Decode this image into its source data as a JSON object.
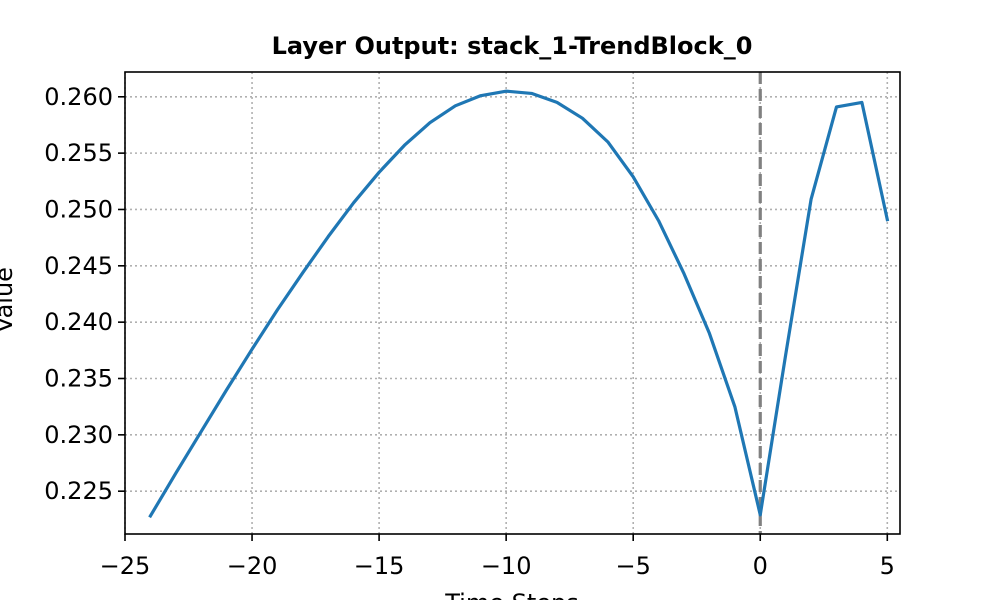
{
  "chart_data": {
    "type": "line",
    "title": "Layer Output: stack_1-TrendBlock_0",
    "xlabel": "Time Steps",
    "ylabel": "Value",
    "xlim": [
      -25,
      5.5
    ],
    "ylim": [
      0.2212,
      0.2622
    ],
    "x_ticks": [
      -25,
      -20,
      -15,
      -10,
      -5,
      0,
      5
    ],
    "x_tick_labels": [
      "−25",
      "−20",
      "−15",
      "−10",
      "−5",
      "0",
      "5"
    ],
    "y_ticks": [
      0.225,
      0.23,
      0.235,
      0.24,
      0.245,
      0.25,
      0.255,
      0.26
    ],
    "y_tick_labels": [
      "0.225",
      "0.230",
      "0.235",
      "0.240",
      "0.245",
      "0.250",
      "0.255",
      "0.260"
    ],
    "grid": true,
    "series": [
      {
        "color": "#1f77b4",
        "x": [
          -24,
          -23,
          -22,
          -21,
          -20,
          -19,
          -18,
          -17,
          -16,
          -15,
          -14,
          -13,
          -12,
          -11,
          -10,
          -9,
          -8,
          -7,
          -6,
          -5,
          -4,
          -3,
          -2,
          -1,
          0,
          1,
          2,
          3,
          4,
          5
        ],
        "values": [
          0.2228,
          0.2266,
          0.2303,
          0.234,
          0.2376,
          0.2411,
          0.2444,
          0.2476,
          0.2506,
          0.2533,
          0.2557,
          0.2577,
          0.2592,
          0.2601,
          0.2605,
          0.2603,
          0.2595,
          0.2581,
          0.256,
          0.2529,
          0.249,
          0.2443,
          0.239,
          0.2325,
          0.2229,
          0.2371,
          0.2509,
          0.2591,
          0.2595,
          0.2491
        ]
      }
    ],
    "reference_line": {
      "x": 0,
      "color": "#808080",
      "style": "dashed"
    }
  }
}
